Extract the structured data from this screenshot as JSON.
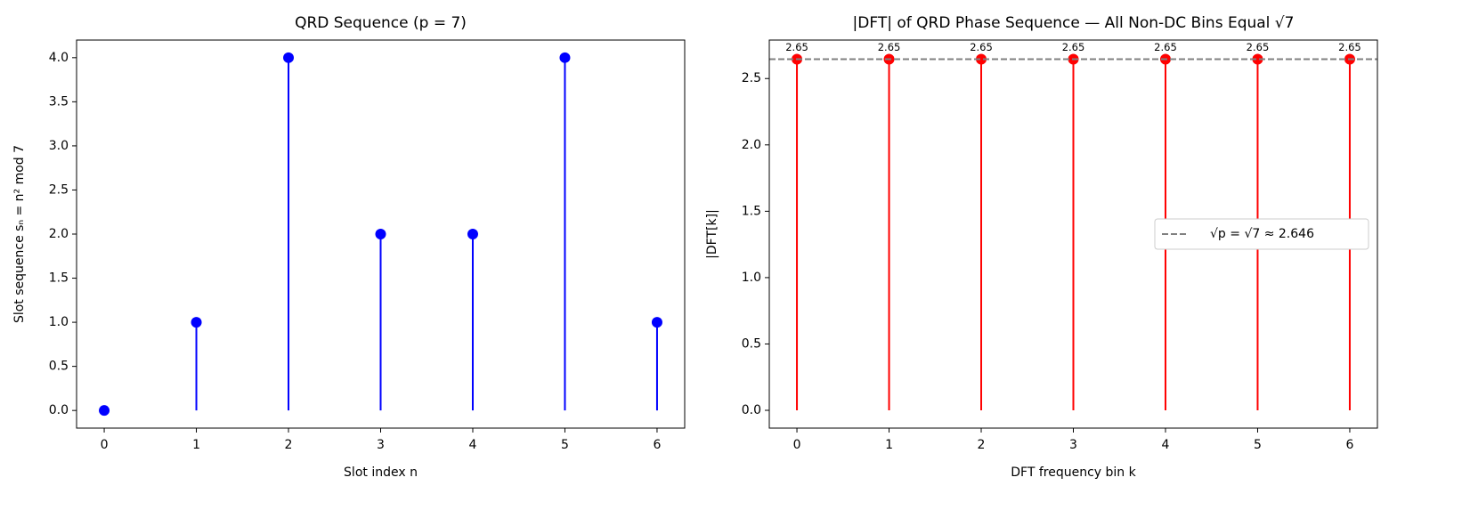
{
  "chart_data": [
    {
      "type": "stem",
      "title": "QRD Sequence (p = 7)",
      "xlabel": "Slot index n",
      "ylabel": "Slot sequence sₙ = n² mod 7",
      "x": [
        0,
        1,
        2,
        3,
        4,
        5,
        6
      ],
      "values": [
        0,
        1,
        4,
        2,
        2,
        4,
        1
      ],
      "color": "#0000ff",
      "xlim": [
        -0.3,
        6.3
      ],
      "xticks": [
        0,
        1,
        2,
        3,
        4,
        5,
        6
      ],
      "ylim": [
        -0.2,
        4.2
      ],
      "yticks": [
        {
          "value": 0,
          "label": "0.0"
        },
        0.5,
        {
          "value": 1,
          "label": "1.0"
        },
        1.5,
        {
          "value": 2,
          "label": "2.0"
        },
        2.5,
        {
          "value": 3,
          "label": "3.0"
        },
        3.5,
        {
          "value": 4,
          "label": "4.0"
        }
      ]
    },
    {
      "type": "stem",
      "title": "|DFT| of QRD Phase Sequence — All Non-DC Bins Equal √7",
      "xlabel": "DFT frequency bin k",
      "ylabel": "|DFT[k]|",
      "x": [
        0,
        1,
        2,
        3,
        4,
        5,
        6
      ],
      "values": [
        2.6458,
        2.6458,
        2.6458,
        2.6458,
        2.6458,
        2.6458,
        2.6458
      ],
      "value_labels": [
        "2.65",
        "2.65",
        "2.65",
        "2.65",
        "2.65",
        "2.65",
        "2.65"
      ],
      "color": "#ff0000",
      "xlim": [
        -0.3,
        6.3
      ],
      "xticks": [
        0,
        1,
        2,
        3,
        4,
        5,
        6
      ],
      "ylim": [
        -0.134,
        2.79
      ],
      "yticks": [
        {
          "value": 0,
          "label": "0.0"
        },
        0.5,
        {
          "value": 1,
          "label": "1.0"
        },
        1.5,
        {
          "value": 2,
          "label": "2.0"
        },
        2.5
      ],
      "reference_line": {
        "value": 2.6458,
        "label": "√p = √7 ≈ 2.646",
        "color": "#808080"
      },
      "legend": "center right"
    }
  ]
}
